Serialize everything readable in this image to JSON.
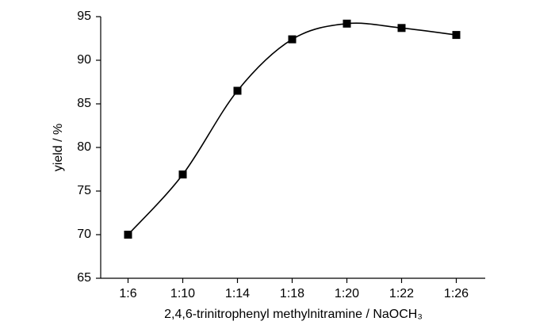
{
  "chart_data": {
    "type": "line",
    "x_label": "2,4,6-trinitrophenyl methylnitramine / NaOCH₃",
    "y_label": "yield / %",
    "categories": [
      "1:6",
      "1:10",
      "1:14",
      "1:18",
      "1:20",
      "1:22",
      "1:26"
    ],
    "values": [
      70,
      76.9,
      86.5,
      92.4,
      94.2,
      93.7,
      92.9
    ],
    "color": "#000000",
    "ylim": [
      65,
      95
    ],
    "yticks": [
      65,
      70,
      75,
      80,
      85,
      90,
      95
    ],
    "grid": false
  }
}
